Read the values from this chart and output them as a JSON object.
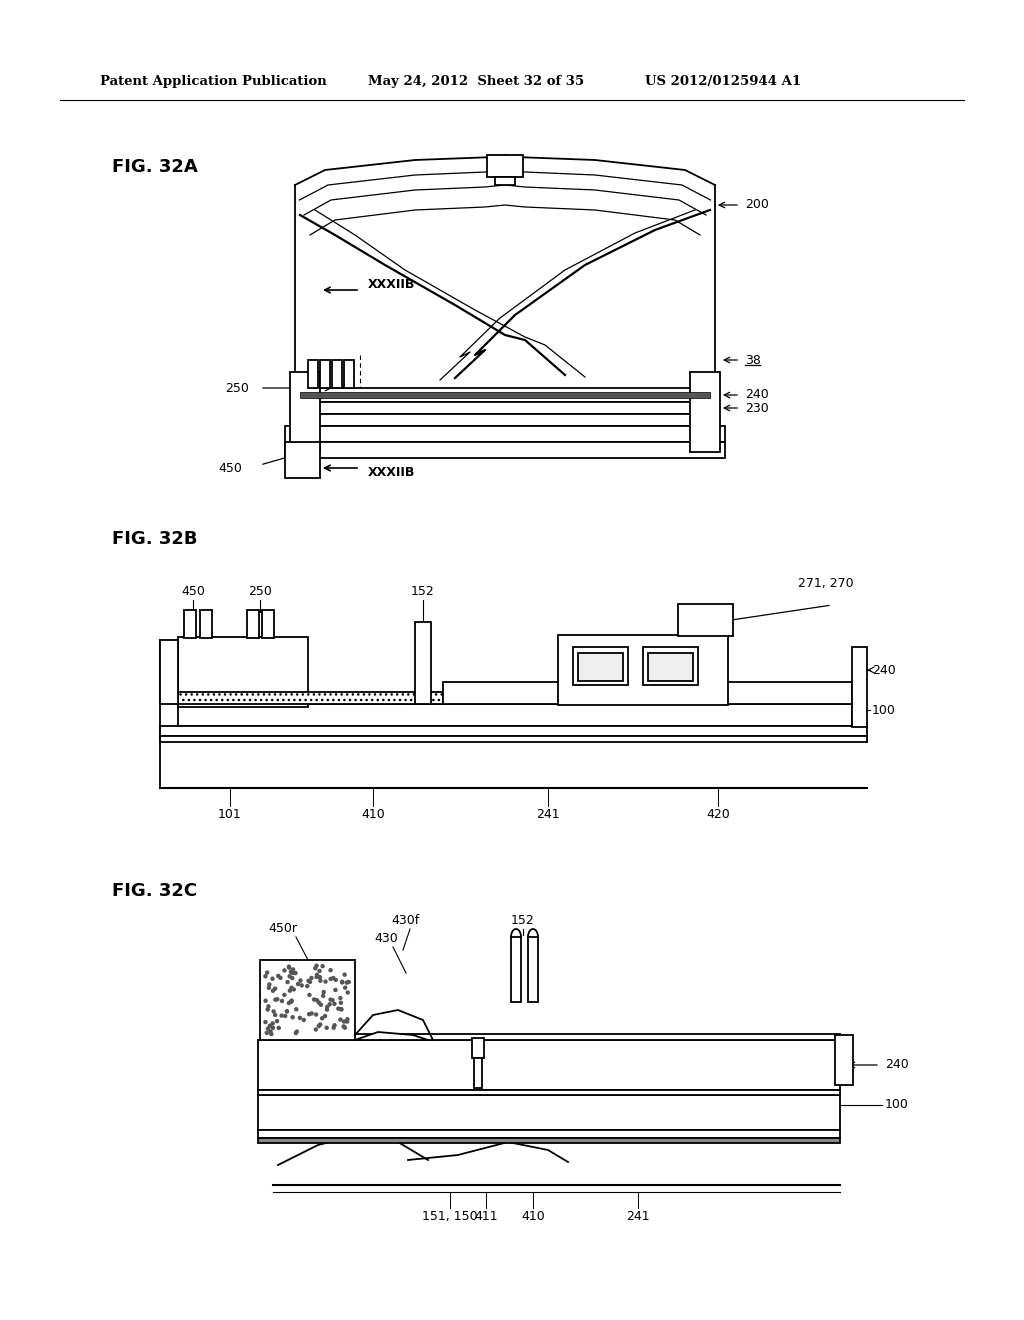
{
  "bg_color": "#ffffff",
  "header_text": "Patent Application Publication",
  "header_date": "May 24, 2012  Sheet 32 of 35",
  "header_patent": "US 2012/0125944 A1",
  "fig32a_label": "FIG. 32A",
  "fig32b_label": "FIG. 32B",
  "fig32c_label": "FIG. 32C",
  "lc": "#000000"
}
